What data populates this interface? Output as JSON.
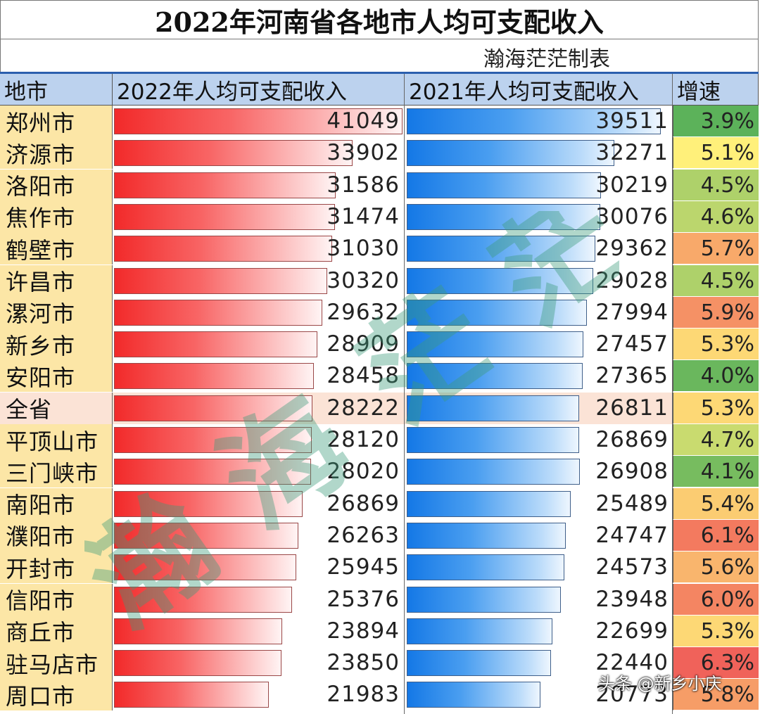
{
  "title": "2022年河南省各地市人均可支配收入",
  "author": "瀚海茫茫制表",
  "chart_data": {
    "type": "bar",
    "headers": [
      "地市",
      "2022年人均可支配收入",
      "2021年人均可支配收入",
      "增速"
    ],
    "rows": [
      {
        "city": "郑州市",
        "y2022": 41049,
        "y2021": 39511,
        "growth": "3.9%"
      },
      {
        "city": "济源市",
        "y2022": 33902,
        "y2021": 32271,
        "growth": "5.1%"
      },
      {
        "city": "洛阳市",
        "y2022": 31586,
        "y2021": 30219,
        "growth": "4.5%"
      },
      {
        "city": "焦作市",
        "y2022": 31474,
        "y2021": 30076,
        "growth": "4.6%"
      },
      {
        "city": "鹤壁市",
        "y2022": 31030,
        "y2021": 29362,
        "growth": "5.7%"
      },
      {
        "city": "许昌市",
        "y2022": 30320,
        "y2021": 29028,
        "growth": "4.5%"
      },
      {
        "city": "漯河市",
        "y2022": 29632,
        "y2021": 27994,
        "growth": "5.9%"
      },
      {
        "city": "新乡市",
        "y2022": 28909,
        "y2021": 27457,
        "growth": "5.3%"
      },
      {
        "city": "安阳市",
        "y2022": 28458,
        "y2021": 27365,
        "growth": "4.0%"
      },
      {
        "city": "全省",
        "y2022": 28222,
        "y2021": 26811,
        "growth": "5.3%"
      },
      {
        "city": "平顶山市",
        "y2022": 28120,
        "y2021": 26869,
        "growth": "4.7%"
      },
      {
        "city": "三门峡市",
        "y2022": 28020,
        "y2021": 26908,
        "growth": "4.1%"
      },
      {
        "city": "南阳市",
        "y2022": 26869,
        "y2021": 25489,
        "growth": "5.4%"
      },
      {
        "city": "濮阳市",
        "y2022": 26263,
        "y2021": 24747,
        "growth": "6.1%"
      },
      {
        "city": "开封市",
        "y2022": 25945,
        "y2021": 24573,
        "growth": "5.6%"
      },
      {
        "city": "信阳市",
        "y2022": 25376,
        "y2021": 23948,
        "growth": "6.0%"
      },
      {
        "city": "商丘市",
        "y2022": 23894,
        "y2021": 22699,
        "growth": "5.3%"
      },
      {
        "city": "驻马店市",
        "y2022": 23850,
        "y2021": 22440,
        "growth": "6.3%"
      },
      {
        "city": "周口市",
        "y2022": 21983,
        "y2021": 20773,
        "growth": "5.8%"
      }
    ],
    "highlight_row": "全省",
    "bar_scale_max": 41049,
    "colors": {
      "bar_2022": "#f22a2a",
      "bar_2021": "#1478e6",
      "header_bg": "#bcd2ee",
      "city_bg": "#fce6a6",
      "highlight_bg": "#fbe3d6",
      "growth_low": "#5cb25a",
      "growth_mid": "#fff07a",
      "growth_high": "#f0625a"
    }
  },
  "watermark": "瀚海茫茫",
  "credit": "头条 @新乡小庆"
}
